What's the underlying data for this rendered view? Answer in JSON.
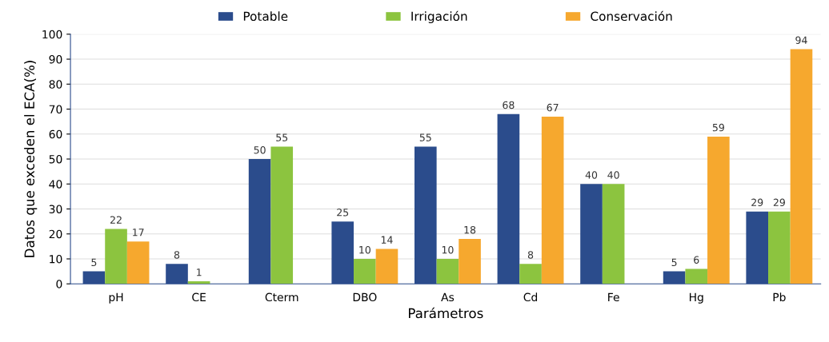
{
  "chart_data": {
    "type": "bar",
    "xlabel": "Parámetros",
    "ylabel": "Datos que exceden el ECA(%)",
    "categories": [
      "pH",
      "CE",
      "Cterm",
      "DBO",
      "As",
      "Cd",
      "Fe",
      "Hg",
      "Pb"
    ],
    "series": [
      {
        "name": "Potable",
        "color": "#2b4c8c",
        "values": [
          5,
          8,
          50,
          25,
          55,
          68,
          40,
          5,
          29
        ]
      },
      {
        "name": "Irrigación",
        "color": "#8cc43f",
        "values": [
          22,
          1,
          55,
          10,
          10,
          8,
          40,
          6,
          29
        ]
      },
      {
        "name": "Conservación",
        "color": "#f6a82e",
        "values": [
          17,
          null,
          null,
          14,
          18,
          67,
          null,
          59,
          94
        ]
      }
    ],
    "ylim": [
      0,
      100
    ],
    "yticks": [
      0,
      10,
      20,
      30,
      40,
      50,
      60,
      70,
      80,
      90,
      100
    ],
    "grid": "y",
    "legend": "top",
    "data_labels": true
  }
}
